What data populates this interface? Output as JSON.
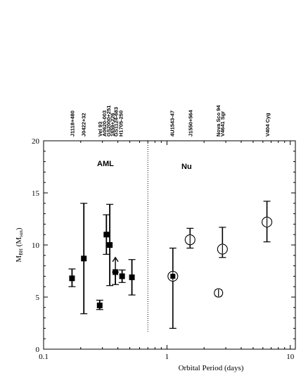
{
  "chart_data": {
    "type": "scatter",
    "xlabel": "Orbital Period (days)",
    "ylabel_main": "M",
    "ylabel_sub": "BH",
    "ylabel_unit_main": "M",
    "ylabel_unit_sub": "sun",
    "x_scale": "log",
    "xlim": [
      0.1,
      11
    ],
    "ylim": [
      0,
      20
    ],
    "x_ticks": [
      {
        "value": 0.1,
        "label": "0.1"
      },
      {
        "value": 1,
        "label": "1"
      },
      {
        "value": 10,
        "label": "10"
      }
    ],
    "y_ticks": [
      {
        "value": 0,
        "label": "0"
      },
      {
        "value": 5,
        "label": "5"
      },
      {
        "value": 10,
        "label": "10"
      },
      {
        "value": 15,
        "label": "15"
      },
      {
        "value": 20,
        "label": "20"
      }
    ],
    "region_labels": [
      "AML",
      "Nu"
    ],
    "divider_x": 0.7,
    "divider_y_range": [
      1.7,
      20
    ],
    "top_labels": [
      {
        "x": 0.17,
        "text": "J1118+480"
      },
      {
        "x": 0.21,
        "text": "J0422+32"
      },
      {
        "x": 0.285,
        "text": "Vel 93"
      },
      {
        "x": 0.31,
        "text": "A0620-003"
      },
      {
        "x": 0.335,
        "text": "GS2000+251"
      },
      {
        "x": 0.36,
        "text": "1859+226"
      },
      {
        "x": 0.385,
        "text": "GS1124-683"
      },
      {
        "x": 0.42,
        "text": "H1705-250"
      },
      {
        "x": 1.1,
        "text": "4U1543-47"
      },
      {
        "x": 1.55,
        "text": "J1550+564"
      },
      {
        "x": 2.6,
        "text": "Nova Sco 94"
      },
      {
        "x": 2.8,
        "text": "V4641 Sgr"
      },
      {
        "x": 6.5,
        "text": "V404 Cyg"
      }
    ],
    "series": [
      {
        "marker": "filled-square",
        "points": [
          {
            "x": 0.17,
            "y": 6.8,
            "ylo": 6.0,
            "yhi": 7.7
          },
          {
            "x": 0.212,
            "y": 8.7,
            "ylo": 3.4,
            "yhi": 14.0
          },
          {
            "x": 0.285,
            "y": 4.2,
            "ylo": 3.8,
            "yhi": 4.7
          },
          {
            "x": 0.323,
            "y": 11.0,
            "ylo": 9.1,
            "yhi": 12.9
          },
          {
            "x": 0.344,
            "y": 10.0,
            "ylo": 6.1,
            "yhi": 13.9
          },
          {
            "x": 0.382,
            "y": 7.4,
            "ylo": 6.2,
            "yhi": 7.4,
            "arrow_to": 8.8
          },
          {
            "x": 0.433,
            "y": 7.0,
            "ylo": 6.4,
            "yhi": 7.6
          },
          {
            "x": 0.52,
            "y": 6.9,
            "ylo": 5.2,
            "yhi": 8.6
          }
        ]
      },
      {
        "marker": "open-circle",
        "points": [
          {
            "x": 1.117,
            "y": 7.0,
            "ylo": 2.0,
            "yhi": 9.7,
            "inner_square": true
          },
          {
            "x": 1.54,
            "y": 10.5,
            "ylo": 9.7,
            "yhi": 11.6
          },
          {
            "x": 2.62,
            "y": 5.4,
            "ylo": 5.1,
            "yhi": 5.7
          },
          {
            "x": 2.82,
            "y": 9.6,
            "ylo": 8.8,
            "yhi": 11.7
          },
          {
            "x": 6.47,
            "y": 12.2,
            "ylo": 10.3,
            "yhi": 14.2
          }
        ]
      }
    ]
  }
}
